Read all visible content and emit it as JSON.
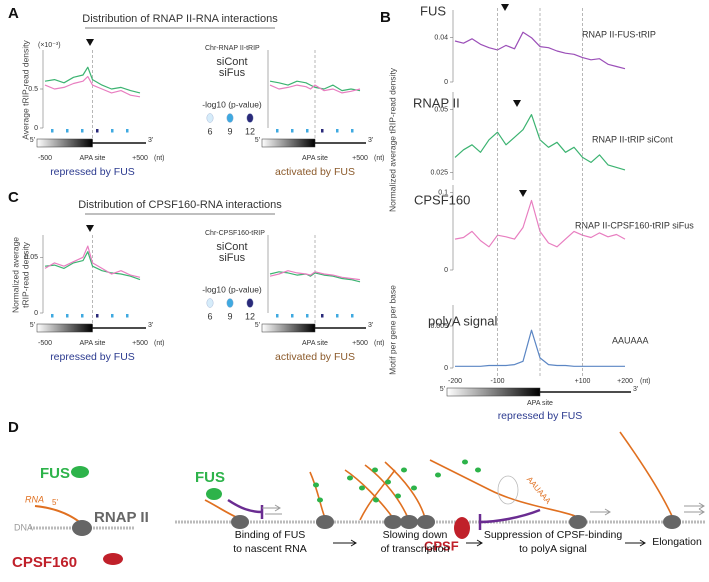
{
  "strand": [
    "5'",
    "3'"
  ],
  "panel_a": {
    "letter": "A",
    "title": "Distribution of RNAP II-RNA interactions",
    "y_label": [
      "Average tRIP-read density"
    ],
    "scale_note": "(×10⁻³)",
    "legend_title": "Chr-RNAP II-tRIP",
    "pvalue_title": "-log10 (p-value)",
    "pvalue_levels": [
      6,
      9,
      12
    ],
    "x_unit": "(nt)",
    "charts": [
      {
        "type": "line",
        "caption": "repressed by FUS",
        "x": [
          -500,
          -400,
          -300,
          -200,
          -100,
          -50,
          0,
          100,
          200,
          300,
          400,
          500
        ],
        "xlim": [
          -500,
          500
        ],
        "xticks": [
          -500,
          {
            "value": 0,
            "label": "APA site"
          },
          {
            "value": 500,
            "label": "+500"
          }
        ],
        "ylim": [
          0,
          1
        ],
        "yticks": [
          0,
          0.5
        ],
        "series": [
          {
            "name": "siCont",
            "color": "#3cb371",
            "values": [
              0.6,
              0.62,
              0.58,
              0.65,
              0.68,
              0.78,
              0.62,
              0.55,
              0.5,
              0.52,
              0.48,
              0.45
            ]
          },
          {
            "name": "siFus",
            "color": "#e87ec0",
            "values": [
              0.55,
              0.5,
              0.52,
              0.57,
              0.6,
              0.66,
              0.55,
              0.5,
              0.45,
              0.48,
              0.42,
              0.4
            ]
          }
        ]
      },
      {
        "type": "line",
        "caption": "activated by FUS",
        "x": [
          -500,
          -400,
          -300,
          -200,
          -100,
          -50,
          0,
          100,
          200,
          300,
          400,
          500
        ],
        "xlim": [
          -500,
          500
        ],
        "xticks": [
          {
            "value": 0,
            "label": "APA site"
          },
          {
            "value": 500,
            "label": "+500"
          }
        ],
        "ylim": [
          0,
          1
        ],
        "series": [
          {
            "color": "#3cb371",
            "values": [
              0.6,
              0.58,
              0.55,
              0.6,
              0.58,
              0.55,
              0.52,
              0.5,
              0.55,
              0.48,
              0.5,
              0.48
            ]
          },
          {
            "color": "#e87ec0",
            "values": [
              0.55,
              0.5,
              0.52,
              0.55,
              0.53,
              0.5,
              0.55,
              0.48,
              0.5,
              0.45,
              0.47,
              0.5
            ]
          }
        ]
      }
    ]
  },
  "panel_c": {
    "letter": "C",
    "title": "Distribution of CPSF160-RNA interactions",
    "y_label": [
      "Normalized  average",
      "tRIP-read density"
    ],
    "legend_title": "Chr-CPSF160-tRIP",
    "pvalue_title": "-log10 (p-value)",
    "pvalue_levels": [
      6,
      9,
      12
    ],
    "x_unit": "(nt)",
    "charts": [
      {
        "type": "line",
        "caption": "repressed by FUS",
        "x": [
          -500,
          -400,
          -300,
          -200,
          -100,
          -50,
          0,
          100,
          200,
          300,
          400,
          500
        ],
        "xlim": [
          -500,
          500
        ],
        "xticks": [
          -500,
          {
            "value": 0,
            "label": "APA site"
          },
          {
            "value": 500,
            "label": "+500"
          }
        ],
        "ylim": [
          0,
          0.07
        ],
        "yticks": [
          0,
          0.05
        ],
        "series": [
          {
            "name": "siCont",
            "color": "#3cb371",
            "values": [
              0.042,
              0.043,
              0.04,
              0.045,
              0.047,
              0.055,
              0.042,
              0.038,
              0.036,
              0.035,
              0.033,
              0.03
            ]
          },
          {
            "name": "siFus",
            "color": "#e87ec0",
            "values": [
              0.04,
              0.045,
              0.042,
              0.046,
              0.05,
              0.06,
              0.045,
              0.04,
              0.035,
              0.038,
              0.034,
              0.032
            ]
          }
        ]
      },
      {
        "type": "line",
        "caption": "activated by FUS",
        "x": [
          -500,
          -400,
          -300,
          -200,
          -100,
          -50,
          0,
          100,
          200,
          300,
          400,
          500
        ],
        "xlim": [
          -500,
          500
        ],
        "xticks": [
          {
            "value": 0,
            "label": "APA site"
          },
          {
            "value": 500,
            "label": "+500"
          }
        ],
        "ylim": [
          0,
          0.07
        ],
        "series": [
          {
            "color": "#3cb371",
            "values": [
              0.035,
              0.037,
              0.036,
              0.034,
              0.035,
              0.033,
              0.036,
              0.034,
              0.033,
              0.031,
              0.03,
              0.028
            ]
          },
          {
            "color": "#e87ec0",
            "values": [
              0.033,
              0.035,
              0.038,
              0.036,
              0.035,
              0.034,
              0.037,
              0.035,
              0.034,
              0.032,
              0.031,
              0.03
            ]
          }
        ]
      }
    ]
  },
  "panel_b": {
    "letter": "B",
    "y_label": "Normalized  average tRIP-read density",
    "x": [
      -200,
      -180,
      -160,
      -140,
      -120,
      -100,
      -80,
      -60,
      -40,
      -20,
      0,
      20,
      40,
      60,
      80,
      100,
      120,
      140,
      160,
      180,
      200
    ],
    "xlim": [
      -200,
      200
    ],
    "xticks": [
      -200,
      -100,
      {
        "value": 0,
        "label": "APA site"
      },
      {
        "value": 100,
        "label": "+100"
      },
      {
        "value": 200,
        "label": "+200"
      }
    ],
    "x_unit": "(nt)",
    "caption": "repressed by FUS",
    "tracks": [
      {
        "type": "line",
        "name": "FUS",
        "annotation": "RNAP II-FUS-tRIP",
        "color": "#9b4fb8",
        "ylim": [
          0,
          0.065
        ],
        "yticks": [
          0,
          0.04
        ],
        "values": [
          0.037,
          0.035,
          0.039,
          0.034,
          0.031,
          0.029,
          0.033,
          0.03,
          0.045,
          0.04,
          0.032,
          0.031,
          0.028,
          0.026,
          0.025,
          0.022,
          0.02,
          0.021,
          0.016,
          0.014,
          0.012
        ]
      },
      {
        "type": "line",
        "name": "RNAP II",
        "annotation": "RNAP II-tRIP  siCont",
        "color": "#3cb371",
        "ylim": [
          0.022,
          0.057
        ],
        "yticks": [
          0.025,
          0.05
        ],
        "values": [
          0.031,
          0.034,
          0.036,
          0.033,
          0.038,
          0.041,
          0.036,
          0.039,
          0.042,
          0.048,
          0.038,
          0.035,
          0.037,
          0.033,
          0.035,
          0.031,
          0.029,
          0.032,
          0.028,
          0.027,
          0.026
        ]
      },
      {
        "type": "line",
        "name": "CPSF160",
        "annotation": "RNAP II-CPSF160-tRIP  siFus",
        "color": "#e87ec0",
        "ylim": [
          0,
          0.11
        ],
        "yticks": [
          0,
          0.1
        ],
        "values": [
          0.04,
          0.042,
          0.05,
          0.038,
          0.03,
          0.045,
          0.043,
          0.04,
          0.055,
          0.09,
          0.05,
          0.035,
          0.03,
          0.04,
          0.05,
          0.045,
          0.042,
          0.048,
          0.043,
          0.046,
          0.04
        ]
      },
      {
        "type": "line",
        "name": "polyA signal",
        "annotation": "AAUAAA",
        "color": "#5b86c4",
        "y_label": "Motif per gene per base",
        "ylim": [
          0,
          0.0075
        ],
        "yticks": [
          0,
          0.005
        ],
        "values": [
          0.0002,
          0.0002,
          0.0002,
          0.0002,
          0.0003,
          0.0003,
          0.0003,
          0.0004,
          0.0008,
          0.0045,
          0.0012,
          0.0004,
          0.0003,
          0.0003,
          0.0002,
          0.0002,
          0.0002,
          0.0002,
          0.0002,
          0.0002,
          0.0002
        ]
      }
    ]
  },
  "panel_d": {
    "letter": "D",
    "legend": {
      "fus": "FUS",
      "rna": "RNA",
      "five_prime": "5'",
      "dna": "DNA",
      "rnap": "RNAP II",
      "cpsf160": "CPSF160"
    },
    "labels": {
      "fus": "FUS",
      "cpsf": "CPSF",
      "motif": "AAUAAA"
    },
    "steps": [
      [
        "Binding of FUS",
        "to nascent RNA"
      ],
      [
        "Slowing down",
        "of transcription"
      ],
      [
        "Suppression of CPSF-binding",
        "to polyA signal"
      ],
      [
        "Elongation"
      ]
    ]
  }
}
